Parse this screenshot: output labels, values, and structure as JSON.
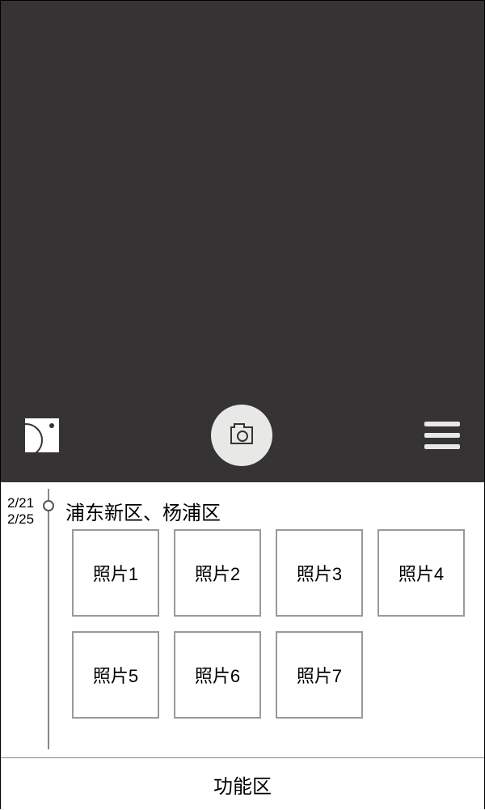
{
  "camera": {
    "background_color": "#353333",
    "shutter_button_color": "#e8e8e6",
    "icon_color": "#ffffff"
  },
  "dates": {
    "start": "2/21",
    "end": "2/25"
  },
  "location": "浦东新区、杨浦区",
  "photos": [
    "照片1",
    "照片2",
    "照片3",
    "照片4",
    "照片5",
    "照片6",
    "照片7"
  ],
  "function_bar": {
    "label": "功能区"
  }
}
